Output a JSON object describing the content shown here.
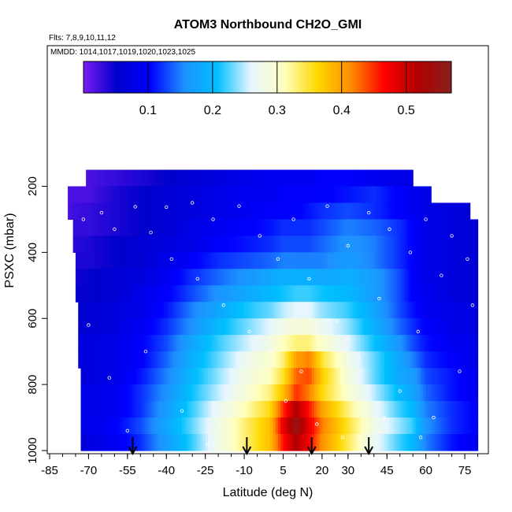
{
  "title": "ATOM3 Northbound CH2O_GMI",
  "flights_note": "Flts: 7,8,9,10,11,12",
  "dates_note": "MMDD: 1014,1017,1019,1020,1023,1025",
  "chart_data": {
    "type": "heatmap",
    "title": "ATOM3 Northbound CH2O_GMI",
    "xlabel": "Latitude (deg N)",
    "ylabel": "PSXC (mbar)",
    "x_ticks": [
      -85,
      -70,
      -55,
      -40,
      -25,
      -10,
      5,
      20,
      30,
      45,
      60,
      75
    ],
    "x_tick_labels": [
      "-85",
      "-70",
      "-55",
      "-40",
      "-25",
      "-10",
      "5",
      "20",
      "30",
      "45",
      "60",
      "75"
    ],
    "y_ticks": [
      200,
      400,
      600,
      800,
      1000
    ],
    "y_tick_labels": [
      "200",
      "400",
      "600",
      "800",
      "1000"
    ],
    "y_reversed": true,
    "colorbar": {
      "range": [
        0.0,
        0.57
      ],
      "ticks": [
        0.1,
        0.2,
        0.3,
        0.4,
        0.5
      ],
      "tick_labels": [
        "0.1",
        "0.2",
        "0.3",
        "0.4",
        "0.5"
      ],
      "colors": [
        "#7a1cf0",
        "#0000cc",
        "#0000ff",
        "#1e90ff",
        "#00bfff",
        "#e6f6ff",
        "#ffffc0",
        "#ffd700",
        "#ff8c00",
        "#ff0000",
        "#b00000",
        "#8b2020"
      ]
    },
    "pressure_levels": [
      175,
      225,
      275,
      325,
      375,
      425,
      475,
      525,
      575,
      625,
      675,
      725,
      775,
      825,
      875,
      925,
      975
    ],
    "latitude_extent_by_level": [
      [
        -71,
        55
      ],
      [
        -78,
        62
      ],
      [
        -78,
        77
      ],
      [
        -76,
        80
      ],
      [
        -76,
        80
      ],
      [
        -75,
        80
      ],
      [
        -75,
        80
      ],
      [
        -75,
        80
      ],
      [
        -74,
        80
      ],
      [
        -74,
        80
      ],
      [
        -74,
        80
      ],
      [
        -74,
        80
      ],
      [
        -73,
        80
      ],
      [
        -73,
        80
      ],
      [
        -73,
        80
      ],
      [
        -73,
        80
      ],
      [
        -73,
        80
      ]
    ],
    "latitude_nodes": [
      -80,
      -70,
      -60,
      -50,
      -40,
      -30,
      -20,
      -10,
      0,
      5,
      10,
      15,
      20,
      30,
      40,
      50,
      55,
      60,
      70,
      80
    ],
    "values": [
      [
        0.02,
        0.02,
        0.03,
        0.04,
        0.05,
        0.06,
        0.07,
        0.08,
        0.09,
        0.09,
        0.09,
        0.09,
        0.1,
        0.1,
        0.09,
        0.08,
        0.08,
        0.08,
        0.07,
        0.07
      ],
      [
        0.02,
        0.02,
        0.04,
        0.05,
        0.06,
        0.07,
        0.08,
        0.09,
        0.09,
        0.1,
        0.1,
        0.1,
        0.1,
        0.11,
        0.12,
        0.1,
        0.09,
        0.08,
        0.07,
        0.07
      ],
      [
        0.02,
        0.03,
        0.04,
        0.05,
        0.06,
        0.07,
        0.08,
        0.09,
        0.1,
        0.1,
        0.1,
        0.11,
        0.12,
        0.13,
        0.12,
        0.1,
        0.09,
        0.08,
        0.07,
        0.06
      ],
      [
        0.03,
        0.03,
        0.04,
        0.05,
        0.06,
        0.08,
        0.09,
        0.1,
        0.11,
        0.12,
        0.12,
        0.12,
        0.13,
        0.15,
        0.14,
        0.12,
        0.1,
        0.08,
        0.07,
        0.06
      ],
      [
        0.03,
        0.04,
        0.05,
        0.06,
        0.07,
        0.08,
        0.1,
        0.11,
        0.12,
        0.13,
        0.13,
        0.13,
        0.14,
        0.16,
        0.15,
        0.12,
        0.1,
        0.08,
        0.07,
        0.06
      ],
      [
        0.04,
        0.04,
        0.05,
        0.06,
        0.08,
        0.1,
        0.12,
        0.13,
        0.14,
        0.15,
        0.15,
        0.15,
        0.15,
        0.17,
        0.15,
        0.12,
        0.1,
        0.08,
        0.07,
        0.06
      ],
      [
        0.04,
        0.05,
        0.06,
        0.07,
        0.09,
        0.12,
        0.14,
        0.16,
        0.18,
        0.19,
        0.19,
        0.19,
        0.18,
        0.19,
        0.17,
        0.13,
        0.1,
        0.08,
        0.07,
        0.06
      ],
      [
        0.05,
        0.05,
        0.06,
        0.08,
        0.1,
        0.13,
        0.16,
        0.18,
        0.2,
        0.21,
        0.22,
        0.22,
        0.21,
        0.2,
        0.17,
        0.13,
        0.1,
        0.09,
        0.07,
        0.06
      ],
      [
        0.05,
        0.06,
        0.07,
        0.08,
        0.11,
        0.15,
        0.18,
        0.21,
        0.23,
        0.25,
        0.26,
        0.26,
        0.24,
        0.22,
        0.18,
        0.13,
        0.11,
        0.09,
        0.08,
        0.07
      ],
      [
        0.05,
        0.06,
        0.07,
        0.09,
        0.12,
        0.16,
        0.2,
        0.23,
        0.26,
        0.28,
        0.29,
        0.29,
        0.27,
        0.24,
        0.19,
        0.14,
        0.12,
        0.1,
        0.08,
        0.07
      ],
      [
        0.06,
        0.07,
        0.08,
        0.1,
        0.13,
        0.18,
        0.22,
        0.25,
        0.28,
        0.31,
        0.33,
        0.33,
        0.3,
        0.26,
        0.21,
        0.16,
        0.13,
        0.11,
        0.09,
        0.08
      ],
      [
        0.06,
        0.07,
        0.08,
        0.1,
        0.14,
        0.19,
        0.23,
        0.27,
        0.3,
        0.33,
        0.4,
        0.42,
        0.35,
        0.28,
        0.23,
        0.18,
        0.15,
        0.12,
        0.1,
        0.08
      ],
      [
        0.06,
        0.07,
        0.08,
        0.11,
        0.15,
        0.2,
        0.24,
        0.28,
        0.31,
        0.35,
        0.43,
        0.44,
        0.37,
        0.29,
        0.23,
        0.18,
        0.17,
        0.13,
        0.11,
        0.09
      ],
      [
        0.07,
        0.08,
        0.09,
        0.12,
        0.16,
        0.21,
        0.25,
        0.29,
        0.33,
        0.38,
        0.45,
        0.42,
        0.36,
        0.3,
        0.25,
        0.2,
        0.18,
        0.14,
        0.11,
        0.09
      ],
      [
        0.07,
        0.08,
        0.09,
        0.12,
        0.17,
        0.22,
        0.27,
        0.31,
        0.36,
        0.45,
        0.52,
        0.46,
        0.4,
        0.33,
        0.27,
        0.22,
        0.2,
        0.15,
        0.12,
        0.1
      ],
      [
        0.07,
        0.08,
        0.1,
        0.13,
        0.18,
        0.23,
        0.28,
        0.33,
        0.38,
        0.48,
        0.55,
        0.48,
        0.42,
        0.35,
        0.28,
        0.24,
        0.22,
        0.16,
        0.12,
        0.1
      ],
      [
        0.06,
        0.07,
        0.09,
        0.12,
        0.17,
        0.22,
        0.28,
        0.33,
        0.38,
        0.46,
        0.52,
        0.47,
        0.41,
        0.34,
        0.27,
        0.22,
        0.2,
        0.15,
        0.11,
        0.09
      ]
    ],
    "surface_arrows_lat": [
      -53,
      -9,
      16,
      38
    ],
    "sample_points": [
      {
        "lat": -72,
        "p": 300
      },
      {
        "lat": -65,
        "p": 280
      },
      {
        "lat": -60,
        "p": 330
      },
      {
        "lat": -52,
        "p": 262
      },
      {
        "lat": -46,
        "p": 340
      },
      {
        "lat": -40,
        "p": 263
      },
      {
        "lat": -38,
        "p": 420
      },
      {
        "lat": -30,
        "p": 250
      },
      {
        "lat": -28,
        "p": 480
      },
      {
        "lat": -22,
        "p": 300
      },
      {
        "lat": -18,
        "p": 560
      },
      {
        "lat": -12,
        "p": 260
      },
      {
        "lat": -8,
        "p": 640
      },
      {
        "lat": -4,
        "p": 350
      },
      {
        "lat": 0,
        "p": 700
      },
      {
        "lat": 3,
        "p": 420
      },
      {
        "lat": 6,
        "p": 850
      },
      {
        "lat": 9,
        "p": 300
      },
      {
        "lat": 12,
        "p": 760
      },
      {
        "lat": 15,
        "p": 480
      },
      {
        "lat": 18,
        "p": 920
      },
      {
        "lat": 22,
        "p": 260
      },
      {
        "lat": 26,
        "p": 610
      },
      {
        "lat": 30,
        "p": 380
      },
      {
        "lat": 34,
        "p": 720
      },
      {
        "lat": 38,
        "p": 280
      },
      {
        "lat": 42,
        "p": 540
      },
      {
        "lat": 46,
        "p": 330
      },
      {
        "lat": 50,
        "p": 820
      },
      {
        "lat": 54,
        "p": 400
      },
      {
        "lat": 57,
        "p": 640
      },
      {
        "lat": 60,
        "p": 300
      },
      {
        "lat": 63,
        "p": 900
      },
      {
        "lat": 66,
        "p": 470
      },
      {
        "lat": 70,
        "p": 350
      },
      {
        "lat": 73,
        "p": 760
      },
      {
        "lat": 76,
        "p": 420
      },
      {
        "lat": 78,
        "p": 560
      },
      {
        "lat": -70,
        "p": 620
      },
      {
        "lat": -62,
        "p": 780
      },
      {
        "lat": -55,
        "p": 940
      },
      {
        "lat": -48,
        "p": 700
      },
      {
        "lat": -34,
        "p": 880
      },
      {
        "lat": -24,
        "p": 980
      },
      {
        "lat": -14,
        "p": 820
      },
      {
        "lat": 28,
        "p": 960
      },
      {
        "lat": 44,
        "p": 900
      },
      {
        "lat": 58,
        "p": 960
      }
    ]
  }
}
